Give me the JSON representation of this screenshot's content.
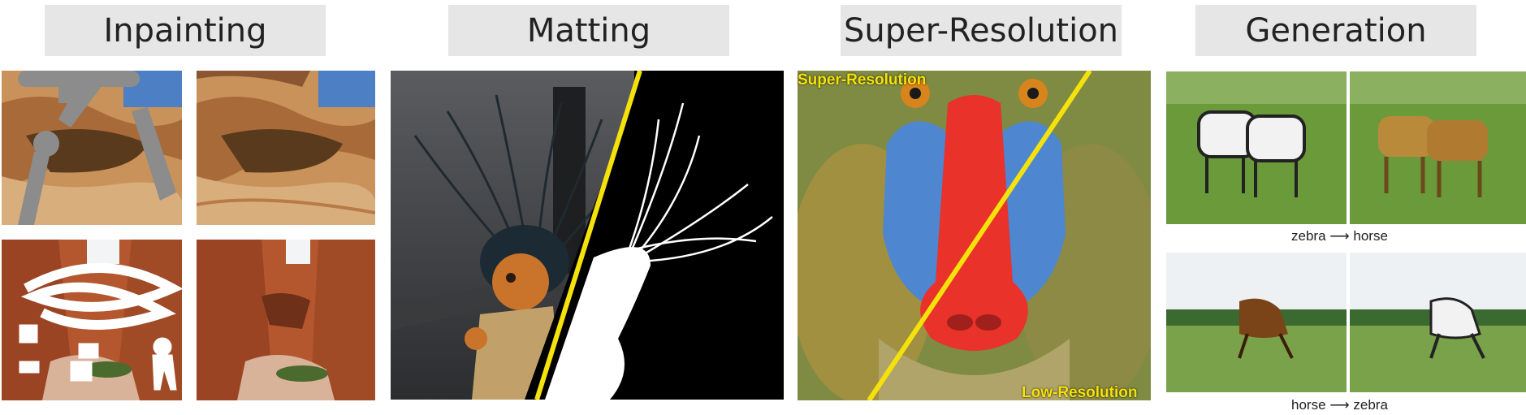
{
  "sections": {
    "inpainting": {
      "title": "Inpainting"
    },
    "matting": {
      "title": "Matting"
    },
    "super_resolution": {
      "title": "Super-Resolution",
      "label_high": "Super-Resolution",
      "label_low": "Low-Resolution"
    },
    "generation": {
      "title": "Generation",
      "caption_top": {
        "from": "zebra",
        "arrow": "⟶",
        "to": "horse"
      },
      "caption_bottom": {
        "from": "horse",
        "arrow": "⟶",
        "to": "zebra"
      }
    }
  },
  "colors": {
    "header_bg": "#e6e6e6",
    "divider_line": "#f5e20a",
    "mask_gray": "#8a8a8a"
  }
}
